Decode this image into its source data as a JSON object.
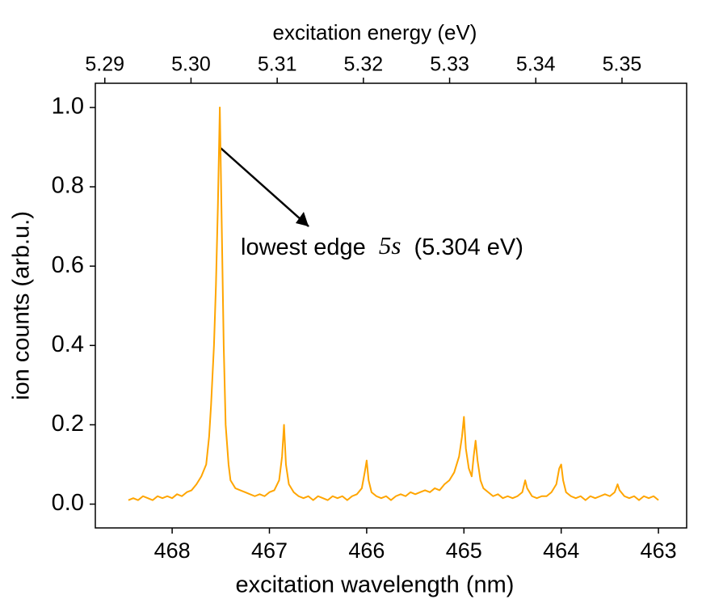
{
  "chart_data": {
    "type": "line",
    "xlabel": "excitation wavelength (nm)",
    "x2label": "excitation energy (eV)",
    "ylabel": "ion counts (arb.u.)",
    "annotation": [
      "lowest edge",
      "5s",
      "(5.304 eV)"
    ],
    "color": "#ffa500",
    "xlim": [
      468.79,
      462.71
    ],
    "xticks": [
      468,
      467,
      466,
      465,
      464,
      463
    ],
    "x2lim": [
      5.2889,
      5.3575
    ],
    "x2ticks": [
      5.29,
      {
        "value": 5.3,
        "label": "5.30"
      },
      5.31,
      5.32,
      5.33,
      5.34,
      5.35
    ],
    "ylim": [
      -0.06,
      1.061
    ],
    "yticks": [
      {
        "value": 0,
        "label": "0.0"
      },
      0.2,
      0.4,
      0.6,
      0.8,
      {
        "value": 1,
        "label": "1.0"
      }
    ],
    "x": [
      468.45,
      468.4,
      468.35,
      468.3,
      468.25,
      468.2,
      468.15,
      468.1,
      468.05,
      468.0,
      467.95,
      467.9,
      467.85,
      467.8,
      467.75,
      467.7,
      467.65,
      467.62,
      467.6,
      467.57,
      467.55,
      467.53,
      467.51,
      467.49,
      467.47,
      467.45,
      467.42,
      467.4,
      467.35,
      467.3,
      467.25,
      467.2,
      467.15,
      467.1,
      467.05,
      467.0,
      466.95,
      466.9,
      466.87,
      466.85,
      466.83,
      466.8,
      466.75,
      466.7,
      466.65,
      466.6,
      466.55,
      466.5,
      466.45,
      466.4,
      466.35,
      466.3,
      466.25,
      466.2,
      466.15,
      466.1,
      466.05,
      466.02,
      466.0,
      465.98,
      465.95,
      465.9,
      465.85,
      465.8,
      465.75,
      465.7,
      465.65,
      465.6,
      465.55,
      465.5,
      465.45,
      465.4,
      465.35,
      465.3,
      465.25,
      465.2,
      465.15,
      465.1,
      465.05,
      465.02,
      465.0,
      464.98,
      464.95,
      464.92,
      464.9,
      464.88,
      464.86,
      464.83,
      464.8,
      464.75,
      464.7,
      464.65,
      464.6,
      464.55,
      464.5,
      464.45,
      464.4,
      464.37,
      464.35,
      464.3,
      464.25,
      464.2,
      464.15,
      464.1,
      464.05,
      464.02,
      464.0,
      463.98,
      463.95,
      463.9,
      463.85,
      463.8,
      463.75,
      463.7,
      463.65,
      463.6,
      463.55,
      463.5,
      463.45,
      463.42,
      463.4,
      463.35,
      463.3,
      463.25,
      463.2,
      463.15,
      463.1,
      463.05,
      463.0
    ],
    "values": [
      0.01,
      0.015,
      0.01,
      0.02,
      0.015,
      0.01,
      0.02,
      0.015,
      0.02,
      0.015,
      0.025,
      0.02,
      0.03,
      0.035,
      0.05,
      0.07,
      0.1,
      0.17,
      0.25,
      0.4,
      0.55,
      0.75,
      1.0,
      0.7,
      0.4,
      0.2,
      0.1,
      0.06,
      0.04,
      0.035,
      0.03,
      0.025,
      0.02,
      0.025,
      0.02,
      0.03,
      0.035,
      0.06,
      0.12,
      0.2,
      0.1,
      0.05,
      0.03,
      0.02,
      0.015,
      0.02,
      0.01,
      0.02,
      0.015,
      0.01,
      0.02,
      0.015,
      0.02,
      0.01,
      0.02,
      0.025,
      0.04,
      0.08,
      0.11,
      0.06,
      0.03,
      0.02,
      0.015,
      0.02,
      0.01,
      0.02,
      0.025,
      0.02,
      0.03,
      0.025,
      0.03,
      0.035,
      0.03,
      0.04,
      0.035,
      0.05,
      0.06,
      0.08,
      0.12,
      0.17,
      0.22,
      0.14,
      0.09,
      0.07,
      0.12,
      0.16,
      0.11,
      0.06,
      0.04,
      0.03,
      0.02,
      0.025,
      0.015,
      0.02,
      0.015,
      0.02,
      0.03,
      0.06,
      0.04,
      0.02,
      0.015,
      0.02,
      0.02,
      0.03,
      0.05,
      0.09,
      0.1,
      0.06,
      0.03,
      0.02,
      0.015,
      0.02,
      0.01,
      0.02,
      0.015,
      0.02,
      0.025,
      0.02,
      0.03,
      0.05,
      0.035,
      0.02,
      0.015,
      0.02,
      0.01,
      0.02,
      0.015,
      0.02,
      0.01
    ]
  }
}
